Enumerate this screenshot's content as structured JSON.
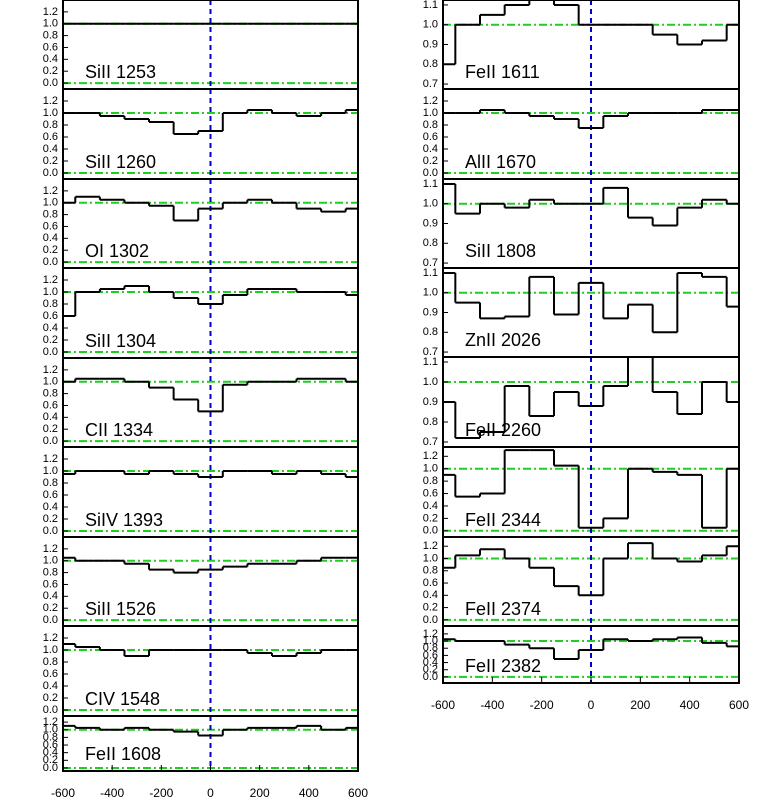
{
  "chart_data": [
    {
      "type": "line",
      "label": "SiII 1253",
      "x": [
        -600,
        -500,
        -400,
        -300,
        -200,
        -100,
        0,
        100,
        200,
        300,
        400,
        500,
        600
      ],
      "values": [
        1.0,
        1.0,
        1.0,
        1.0,
        1.0,
        1.0,
        1.0,
        1.0,
        1.0,
        1.0,
        1.0,
        1.0,
        1.0
      ],
      "xlim": [
        -600,
        600
      ],
      "ylim": [
        -0.1,
        1.4
      ],
      "yticks": [
        {
          "value": 0,
          "label": "0.0"
        },
        0.2,
        0.4,
        0.6,
        0.8,
        {
          "value": 1,
          "label": "1.0"
        },
        1.2
      ],
      "hlines": [
        0,
        1
      ],
      "vline": 0,
      "color": "#000000"
    },
    {
      "type": "line",
      "label": "SiII 1260",
      "x": [
        -600,
        -500,
        -400,
        -300,
        -200,
        -100,
        0,
        100,
        200,
        300,
        400,
        500,
        600
      ],
      "values": [
        1.0,
        1.0,
        0.95,
        0.9,
        0.85,
        0.65,
        0.7,
        1.0,
        1.05,
        1.0,
        0.95,
        1.0,
        1.05
      ],
      "xlim": [
        -600,
        600
      ],
      "ylim": [
        -0.1,
        1.4
      ],
      "yticks": [
        {
          "value": 0,
          "label": "0.0"
        },
        0.2,
        0.4,
        0.6,
        0.8,
        {
          "value": 1,
          "label": "1.0"
        },
        1.2
      ],
      "hlines": [
        0,
        1
      ],
      "vline": 0,
      "color": "#000000"
    },
    {
      "type": "line",
      "label": "OI 1302",
      "x": [
        -600,
        -500,
        -400,
        -300,
        -200,
        -100,
        0,
        100,
        200,
        300,
        400,
        500,
        600
      ],
      "values": [
        1.0,
        1.1,
        1.05,
        1.0,
        0.95,
        0.7,
        0.9,
        1.0,
        1.05,
        1.0,
        0.9,
        0.85,
        0.9
      ],
      "xlim": [
        -600,
        600
      ],
      "ylim": [
        -0.1,
        1.4
      ],
      "yticks": [
        {
          "value": 0,
          "label": "0.0"
        },
        0.2,
        0.4,
        0.6,
        0.8,
        {
          "value": 1,
          "label": "1.0"
        },
        1.2
      ],
      "hlines": [
        0,
        1
      ],
      "vline": 0,
      "color": "#000000"
    },
    {
      "type": "line",
      "label": "SiII 1304",
      "x": [
        -600,
        -500,
        -400,
        -300,
        -200,
        -100,
        0,
        100,
        200,
        300,
        400,
        500,
        600
      ],
      "values": [
        0.6,
        1.0,
        1.05,
        1.1,
        1.0,
        0.9,
        0.8,
        0.95,
        1.05,
        1.05,
        1.0,
        1.0,
        0.95
      ],
      "xlim": [
        -600,
        600
      ],
      "ylim": [
        -0.1,
        1.4
      ],
      "yticks": [
        {
          "value": 0,
          "label": "0.0"
        },
        0.2,
        0.4,
        0.6,
        0.8,
        {
          "value": 1,
          "label": "1.0"
        },
        1.2
      ],
      "hlines": [
        0,
        1
      ],
      "vline": 0,
      "color": "#000000"
    },
    {
      "type": "line",
      "label": "CII 1334",
      "x": [
        -600,
        -500,
        -400,
        -300,
        -200,
        -100,
        0,
        100,
        200,
        300,
        400,
        500,
        600
      ],
      "values": [
        1.0,
        1.05,
        1.05,
        1.0,
        0.9,
        0.7,
        0.5,
        0.95,
        1.0,
        1.0,
        1.05,
        1.05,
        1.0
      ],
      "xlim": [
        -600,
        600
      ],
      "ylim": [
        -0.1,
        1.4
      ],
      "yticks": [
        {
          "value": 0,
          "label": "0.0"
        },
        0.2,
        0.4,
        0.6,
        0.8,
        {
          "value": 1,
          "label": "1.0"
        },
        1.2
      ],
      "hlines": [
        0,
        1
      ],
      "vline": 0,
      "color": "#000000"
    },
    {
      "type": "line",
      "label": "SiIV 1393",
      "x": [
        -600,
        -500,
        -400,
        -300,
        -200,
        -100,
        0,
        100,
        200,
        300,
        400,
        500,
        600
      ],
      "values": [
        0.95,
        1.0,
        1.0,
        0.95,
        1.0,
        0.95,
        0.9,
        1.0,
        1.0,
        0.95,
        1.0,
        0.95,
        0.9
      ],
      "xlim": [
        -600,
        600
      ],
      "ylim": [
        -0.1,
        1.4
      ],
      "yticks": [
        {
          "value": 0,
          "label": "0.0"
        },
        0.2,
        0.4,
        0.6,
        0.8,
        {
          "value": 1,
          "label": "1.0"
        },
        1.2
      ],
      "hlines": [
        0,
        1
      ],
      "vline": 0,
      "color": "#000000"
    },
    {
      "type": "line",
      "label": "SiII 1526",
      "x": [
        -600,
        -500,
        -400,
        -300,
        -200,
        -100,
        0,
        100,
        200,
        300,
        400,
        500,
        600
      ],
      "values": [
        1.05,
        1.0,
        1.0,
        0.95,
        0.85,
        0.8,
        0.85,
        0.9,
        0.95,
        0.95,
        1.0,
        1.05,
        1.05
      ],
      "xlim": [
        -600,
        600
      ],
      "ylim": [
        -0.1,
        1.4
      ],
      "yticks": [
        {
          "value": 0,
          "label": "0.0"
        },
        0.2,
        0.4,
        0.6,
        0.8,
        {
          "value": 1,
          "label": "1.0"
        },
        1.2
      ],
      "hlines": [
        0,
        1
      ],
      "vline": 0,
      "color": "#000000"
    },
    {
      "type": "line",
      "label": "CIV 1548",
      "x": [
        -600,
        -500,
        -400,
        -300,
        -200,
        -100,
        0,
        100,
        200,
        300,
        400,
        500,
        600
      ],
      "values": [
        1.1,
        1.05,
        1.0,
        0.9,
        1.0,
        1.0,
        1.0,
        1.0,
        0.95,
        0.9,
        0.95,
        1.0,
        1.0
      ],
      "xlim": [
        -600,
        600
      ],
      "ylim": [
        -0.1,
        1.4
      ],
      "yticks": [
        {
          "value": 0,
          "label": "0.0"
        },
        0.2,
        0.4,
        0.6,
        0.8,
        {
          "value": 1,
          "label": "1.0"
        },
        1.2
      ],
      "hlines": [
        0,
        1
      ],
      "vline": 0,
      "color": "#000000"
    },
    {
      "type": "line",
      "label": "FeII 1608",
      "x": [
        -600,
        -500,
        -400,
        -300,
        -200,
        -100,
        0,
        100,
        200,
        300,
        400,
        500,
        600
      ],
      "values": [
        1.1,
        1.05,
        1.0,
        1.05,
        1.0,
        0.95,
        0.85,
        1.0,
        1.05,
        1.05,
        1.1,
        1.0,
        1.05
      ],
      "xlim": [
        -600,
        600
      ],
      "ylim": [
        -0.08,
        1.36
      ],
      "yticks": [
        {
          "value": 0,
          "label": "0.0"
        },
        0.2,
        0.4,
        0.6,
        0.8,
        {
          "value": 1,
          "label": "1.0"
        },
        1.2
      ],
      "xticks": [
        -600,
        -400,
        -200,
        0,
        200,
        400,
        600
      ],
      "hlines": [
        0,
        1
      ],
      "vline": 0,
      "color": "#000000"
    },
    {
      "type": "line",
      "label": "FeII 1611",
      "x": [
        -600,
        -500,
        -400,
        -300,
        -200,
        -100,
        0,
        100,
        200,
        300,
        400,
        500,
        600
      ],
      "values": [
        0.8,
        1.0,
        1.05,
        1.1,
        1.15,
        1.1,
        1.0,
        1.0,
        1.0,
        0.95,
        0.9,
        0.92,
        1.0
      ],
      "xlim": [
        -600,
        600
      ],
      "ylim": [
        0.675,
        1.125
      ],
      "yticks": [
        0.7,
        0.8,
        0.9,
        {
          "value": 1,
          "label": "1.0"
        },
        1.1
      ],
      "hlines": [
        0,
        1
      ],
      "vline": 0,
      "color": "#000000"
    },
    {
      "type": "line",
      "label": "AlII 1670",
      "x": [
        -600,
        -500,
        -400,
        -300,
        -200,
        -100,
        0,
        100,
        200,
        300,
        400,
        500,
        600
      ],
      "values": [
        1.0,
        1.0,
        1.05,
        1.0,
        0.95,
        0.9,
        0.75,
        0.95,
        1.0,
        1.0,
        1.0,
        1.05,
        1.05
      ],
      "xlim": [
        -600,
        600
      ],
      "ylim": [
        -0.1,
        1.4
      ],
      "yticks": [
        {
          "value": 0,
          "label": "0.0"
        },
        0.2,
        0.4,
        0.6,
        0.8,
        {
          "value": 1,
          "label": "1.0"
        },
        1.2
      ],
      "hlines": [
        0,
        1
      ],
      "vline": 0,
      "color": "#000000"
    },
    {
      "type": "line",
      "label": "SiII 1808",
      "x": [
        -600,
        -500,
        -400,
        -300,
        -200,
        -100,
        0,
        100,
        200,
        300,
        400,
        500,
        600
      ],
      "values": [
        1.1,
        0.95,
        1.0,
        0.98,
        1.02,
        1.0,
        1.0,
        1.08,
        0.93,
        0.89,
        0.98,
        1.02,
        1.0
      ],
      "xlim": [
        -600,
        600
      ],
      "ylim": [
        0.675,
        1.125
      ],
      "yticks": [
        0.7,
        0.8,
        0.9,
        {
          "value": 1,
          "label": "1.0"
        },
        1.1
      ],
      "hlines": [
        0,
        1
      ],
      "vline": 0,
      "color": "#000000"
    },
    {
      "type": "line",
      "label": "ZnII 2026",
      "x": [
        -600,
        -500,
        -400,
        -300,
        -200,
        -100,
        0,
        100,
        200,
        300,
        400,
        500,
        600
      ],
      "values": [
        1.1,
        0.95,
        0.87,
        0.88,
        1.08,
        0.89,
        1.05,
        0.87,
        0.94,
        0.8,
        1.1,
        1.08,
        0.93
      ],
      "xlim": [
        -600,
        600
      ],
      "ylim": [
        0.675,
        1.125
      ],
      "yticks": [
        0.7,
        0.8,
        0.9,
        {
          "value": 1,
          "label": "1.0"
        },
        1.1
      ],
      "hlines": [
        0,
        1
      ],
      "vline": 0,
      "color": "#000000"
    },
    {
      "type": "line",
      "label": "FeII 2260",
      "x": [
        -600,
        -500,
        -400,
        -300,
        -200,
        -100,
        0,
        100,
        200,
        300,
        400,
        500,
        600
      ],
      "values": [
        0.9,
        0.72,
        0.75,
        0.98,
        0.83,
        0.95,
        0.88,
        0.98,
        1.15,
        0.95,
        0.84,
        1.0,
        0.9
      ],
      "xlim": [
        -600,
        600
      ],
      "ylim": [
        0.675,
        1.125
      ],
      "yticks": [
        0.7,
        0.8,
        0.9,
        {
          "value": 1,
          "label": "1.0"
        },
        1.1
      ],
      "hlines": [
        0,
        1
      ],
      "vline": 0,
      "color": "#000000"
    },
    {
      "type": "line",
      "label": "FeII 2344",
      "x": [
        -600,
        -500,
        -400,
        -300,
        -200,
        -100,
        0,
        100,
        200,
        300,
        400,
        500,
        600
      ],
      "values": [
        0.9,
        0.55,
        0.6,
        1.3,
        1.3,
        1.05,
        0.05,
        0.2,
        1.0,
        0.95,
        0.9,
        0.05,
        1.0
      ],
      "xlim": [
        -600,
        600
      ],
      "ylim": [
        -0.1,
        1.35
      ],
      "yticks": [
        {
          "value": 0,
          "label": "0.0"
        },
        0.2,
        0.4,
        0.6,
        0.8,
        {
          "value": 1,
          "label": "1.0"
        },
        1.2
      ],
      "hlines": [
        0,
        1
      ],
      "vline": 0,
      "color": "#000000"
    },
    {
      "type": "line",
      "label": "FeII 2374",
      "x": [
        -600,
        -500,
        -400,
        -300,
        -200,
        -100,
        0,
        100,
        200,
        300,
        400,
        500,
        600
      ],
      "values": [
        0.85,
        1.05,
        1.15,
        1.0,
        0.85,
        0.55,
        0.4,
        1.0,
        1.25,
        1.0,
        0.95,
        1.05,
        1.2
      ],
      "xlim": [
        -600,
        600
      ],
      "ylim": [
        -0.1,
        1.35
      ],
      "yticks": [
        {
          "value": 0,
          "label": "0.0"
        },
        0.2,
        0.4,
        0.6,
        0.8,
        {
          "value": 1,
          "label": "1.0"
        },
        1.2
      ],
      "hlines": [
        0,
        1
      ],
      "vline": 0,
      "color": "#000000"
    },
    {
      "type": "line",
      "label": "FeII 2382",
      "x": [
        -600,
        -500,
        -400,
        -300,
        -200,
        -100,
        0,
        100,
        200,
        300,
        400,
        500,
        600
      ],
      "values": [
        1.05,
        1.0,
        1.0,
        0.9,
        0.8,
        0.5,
        0.75,
        1.05,
        1.0,
        1.05,
        1.1,
        0.95,
        0.85
      ],
      "xlim": [
        -600,
        600
      ],
      "ylim": [
        -0.17,
        1.42
      ],
      "yticks": [
        {
          "value": 0,
          "label": "0.0"
        },
        0.2,
        0.4,
        0.6,
        0.8,
        {
          "value": 1,
          "label": "1.0"
        },
        1.2
      ],
      "xticks": [
        -600,
        -400,
        -200,
        0,
        200,
        400,
        600
      ],
      "hlines": [
        0,
        1
      ],
      "vline": 0,
      "color": "#000000"
    }
  ]
}
